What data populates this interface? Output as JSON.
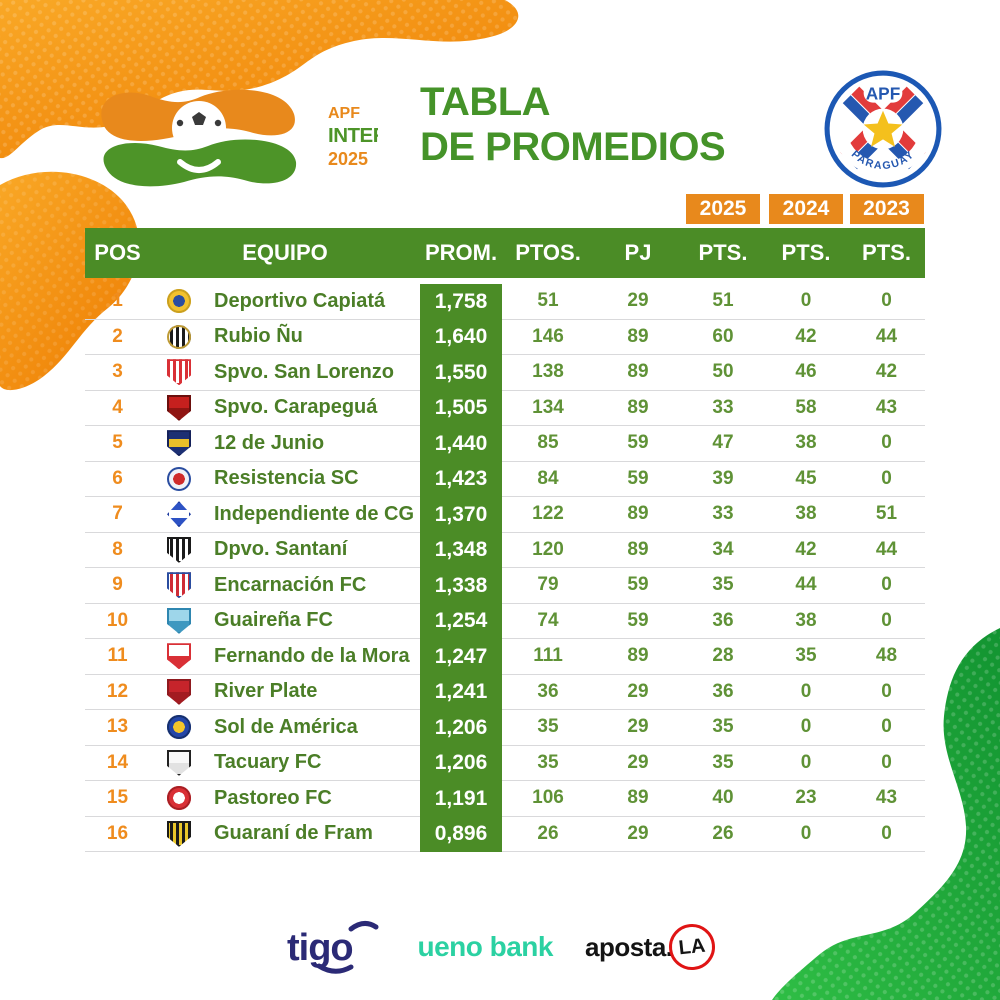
{
  "chart_data": {
    "type": "table",
    "title": "TABLA DE PROMEDIOS",
    "competition": "APF INTERMEDIA 2025",
    "year_badges": [
      "2025",
      "2024",
      "2023"
    ],
    "columns": [
      "POS",
      "EQUIPO",
      "PROM.",
      "PTOS.",
      "PJ",
      "PTS.",
      "PTS.",
      "PTS."
    ],
    "rows": [
      {
        "pos": 1,
        "team": "Deportivo Capiatá",
        "prom": "1,758",
        "ptos": 51,
        "pj": 29,
        "pts_2025": 51,
        "pts_2024": 0,
        "pts_2023": 0,
        "logo": {
          "shape": "circle",
          "pattern": "dot",
          "c1": "#f2c12e",
          "c2": "#2a4da0",
          "ring": "#caa020"
        }
      },
      {
        "pos": 2,
        "team": "Rubio Ñu",
        "prom": "1,640",
        "ptos": 146,
        "pj": 89,
        "pts_2025": 60,
        "pts_2024": 42,
        "pts_2023": 44,
        "logo": {
          "shape": "circle",
          "pattern": "stripes",
          "c1": "#ffffff",
          "c2": "#1a1a1a",
          "ring": "#bd9a35"
        }
      },
      {
        "pos": 3,
        "team": "Spvo. San Lorenzo",
        "prom": "1,550",
        "ptos": 138,
        "pj": 89,
        "pts_2025": 50,
        "pts_2024": 46,
        "pts_2023": 42,
        "logo": {
          "shape": "shield",
          "pattern": "stripes",
          "c1": "#d93036",
          "c2": "#ffffff",
          "ring": "#d93036"
        }
      },
      {
        "pos": 4,
        "team": "Spvo. Carapeguá",
        "prom": "1,505",
        "ptos": 134,
        "pj": 89,
        "pts_2025": 33,
        "pts_2024": 58,
        "pts_2023": 43,
        "logo": {
          "shape": "shield",
          "pattern": "solid",
          "c1": "#c6201e",
          "c2": "#8f1512",
          "ring": "#6b0f0d"
        }
      },
      {
        "pos": 5,
        "team": "12 de Junio",
        "prom": "1,440",
        "ptos": 85,
        "pj": 59,
        "pts_2025": 47,
        "pts_2024": 38,
        "pts_2023": 0,
        "logo": {
          "shape": "shield",
          "pattern": "band",
          "c1": "#1c2f73",
          "c2": "#e9bf2a",
          "ring": "#14215a"
        }
      },
      {
        "pos": 6,
        "team": "Resistencia SC",
        "prom": "1,423",
        "ptos": 84,
        "pj": 59,
        "pts_2025": 39,
        "pts_2024": 45,
        "pts_2023": 0,
        "logo": {
          "shape": "circle",
          "pattern": "dot",
          "c1": "#f0f2f8",
          "c2": "#cf2b2b",
          "ring": "#2a4da0"
        }
      },
      {
        "pos": 7,
        "team": "Independiente de CG",
        "prom": "1,370",
        "ptos": 122,
        "pj": 89,
        "pts_2025": 33,
        "pts_2024": 38,
        "pts_2023": 51,
        "logo": {
          "shape": "diamond",
          "pattern": "band",
          "c1": "#2d52c4",
          "c2": "#ffffff",
          "ring": "#1c3aa0"
        }
      },
      {
        "pos": 8,
        "team": "Dpvo. Santaní",
        "prom": "1,348",
        "ptos": 120,
        "pj": 89,
        "pts_2025": 34,
        "pts_2024": 42,
        "pts_2023": 44,
        "logo": {
          "shape": "shield",
          "pattern": "stripes",
          "c1": "#ffffff",
          "c2": "#1a1a1a",
          "ring": "#1a1a1a"
        }
      },
      {
        "pos": 9,
        "team": "Encarnación FC",
        "prom": "1,338",
        "ptos": 79,
        "pj": 59,
        "pts_2025": 35,
        "pts_2024": 44,
        "pts_2023": 0,
        "logo": {
          "shape": "shield",
          "pattern": "stripes",
          "c1": "#ffffff",
          "c2": "#cf2b35",
          "ring": "#2a4da0"
        }
      },
      {
        "pos": 10,
        "team": "Guaireña FC",
        "prom": "1,254",
        "ptos": 74,
        "pj": 59,
        "pts_2025": 36,
        "pts_2024": 38,
        "pts_2023": 0,
        "logo": {
          "shape": "shield",
          "pattern": "solid",
          "c1": "#9ed6ea",
          "c2": "#3e98c0",
          "ring": "#2e86b0"
        }
      },
      {
        "pos": 11,
        "team": "Fernando de la Mora",
        "prom": "1,247",
        "ptos": 111,
        "pj": 89,
        "pts_2025": 28,
        "pts_2024": 35,
        "pts_2023": 48,
        "logo": {
          "shape": "shield",
          "pattern": "solid",
          "c1": "#ffffff",
          "c2": "#d93036",
          "ring": "#d93036"
        }
      },
      {
        "pos": 12,
        "team": "River Plate",
        "prom": "1,241",
        "ptos": 36,
        "pj": 29,
        "pts_2025": 36,
        "pts_2024": 0,
        "pts_2023": 0,
        "logo": {
          "shape": "shield",
          "pattern": "solid",
          "c1": "#c6242b",
          "c2": "#a31b21",
          "ring": "#8f1a1f"
        }
      },
      {
        "pos": 13,
        "team": "Sol de América",
        "prom": "1,206",
        "ptos": 35,
        "pj": 29,
        "pts_2025": 35,
        "pts_2024": 0,
        "pts_2023": 0,
        "logo": {
          "shape": "circle",
          "pattern": "dot",
          "c1": "#2446a8",
          "c2": "#f3c52a",
          "ring": "#16306e"
        }
      },
      {
        "pos": 14,
        "team": "Tacuary FC",
        "prom": "1,206",
        "ptos": 35,
        "pj": 29,
        "pts_2025": 35,
        "pts_2024": 0,
        "pts_2023": 0,
        "logo": {
          "shape": "shield",
          "pattern": "solid",
          "c1": "#f8f8f8",
          "c2": "#e2e2e2",
          "ring": "#222222"
        }
      },
      {
        "pos": 15,
        "team": "Pastoreo FC",
        "prom": "1,191",
        "ptos": 106,
        "pj": 89,
        "pts_2025": 40,
        "pts_2024": 23,
        "pts_2023": 43,
        "logo": {
          "shape": "circle",
          "pattern": "dot",
          "c1": "#d93036",
          "c2": "#ffffff",
          "ring": "#a81f24"
        }
      },
      {
        "pos": 16,
        "team": "Guaraní de Fram",
        "prom": "0,896",
        "ptos": 26,
        "pj": 29,
        "pts_2025": 26,
        "pts_2024": 0,
        "pts_2023": 0,
        "logo": {
          "shape": "shield",
          "pattern": "stripes",
          "c1": "#e9c62a",
          "c2": "#1a1a1a",
          "ring": "#1a1a1a"
        }
      }
    ]
  },
  "header": {
    "title_line1": "TABLA",
    "title_line2": "DE PROMEDIOS",
    "league_logo": {
      "apf": "APF",
      "intermedia": "INTERMEDIA",
      "year": "2025"
    },
    "crest": {
      "apf": "APF",
      "country": "PARAGUAY"
    }
  },
  "sponsors": {
    "tigo": "tigo",
    "ueno_bank": "ueno bank",
    "apostala_prefix": "aposta.",
    "apostala_circle": "LA"
  },
  "colors": {
    "table_green": "#4b8c26",
    "accent_orange": "#e8891c",
    "title_green": "#459329",
    "row_number_green": "#5f9236",
    "team_name_green": "#4b7e27",
    "position_orange": "#ef8c1e",
    "tigo_navy": "#2b2a76",
    "ueno_teal": "#2bd1a2",
    "aposta_red": "#e01414"
  }
}
